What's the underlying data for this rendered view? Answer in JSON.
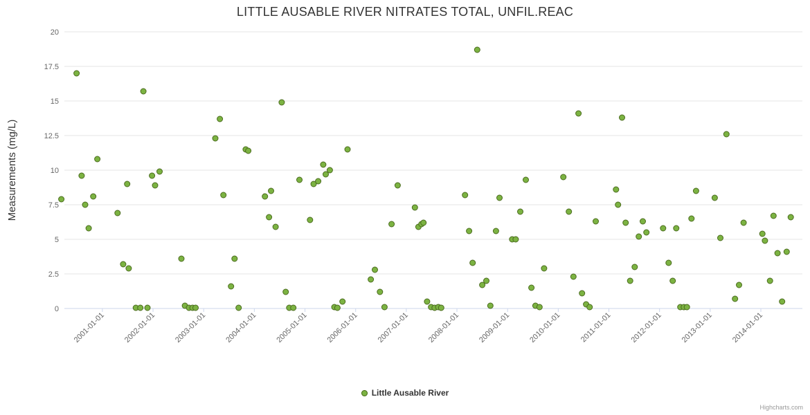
{
  "title": "LITTLE AUSABLE RIVER NITRATES TOTAL, UNFIL.REAC",
  "legend": {
    "label": "Little Ausable River"
  },
  "credits": "Highcharts.com",
  "colors": {
    "point_fill": "#7cb342",
    "point_stroke": "#4b6b1f",
    "grid": "#e6e6e6",
    "axis_line": "#ccd6eb",
    "tick_label": "#666666",
    "axis_title": "#333333"
  },
  "chart_data": {
    "type": "scatter",
    "title": "LITTLE AUSABLE RIVER NITRATES TOTAL, UNFIL.REAC",
    "xlabel": "",
    "ylabel": "Measurements (mg/L)",
    "legend_position": "bottom-center",
    "grid": "horizontal-only",
    "xlim": [
      2000.25,
      2014.82
    ],
    "ylim": [
      0,
      20
    ],
    "ytick_values": [
      0,
      2.5,
      5,
      7.5,
      10,
      12.5,
      15,
      17.5,
      20
    ],
    "ytick_labels": [
      "0",
      "2.5",
      "5",
      "7.5",
      "10",
      "12.5",
      "15",
      "17.5",
      "20"
    ],
    "xtick_values": [
      2001,
      2002,
      2003,
      2004,
      2005,
      2006,
      2007,
      2008,
      2009,
      2010,
      2011,
      2012,
      2013,
      2014
    ],
    "xtick_labels": [
      "2001-01-01",
      "2002-01-01",
      "2003-01-01",
      "2004-01-01",
      "2005-01-01",
      "2006-01-01",
      "2007-01-01",
      "2008-01-01",
      "2009-01-01",
      "2010-01-01",
      "2011-01-01",
      "2012-01-01",
      "2013-01-01",
      "2014-01-01"
    ],
    "series": [
      {
        "name": "Little Ausable River",
        "points": [
          [
            2000.19,
            7.9
          ],
          [
            2000.49,
            17.0
          ],
          [
            2000.59,
            9.6
          ],
          [
            2000.66,
            7.5
          ],
          [
            2000.73,
            5.8
          ],
          [
            2000.82,
            8.1
          ],
          [
            2000.9,
            10.8
          ],
          [
            2001.3,
            6.9
          ],
          [
            2001.41,
            3.2
          ],
          [
            2001.49,
            9.0
          ],
          [
            2001.52,
            2.9
          ],
          [
            2001.66,
            0.05
          ],
          [
            2001.75,
            0.05
          ],
          [
            2001.81,
            15.7
          ],
          [
            2001.89,
            0.05
          ],
          [
            2001.98,
            9.6
          ],
          [
            2002.04,
            8.9
          ],
          [
            2002.13,
            9.9
          ],
          [
            2002.56,
            3.6
          ],
          [
            2002.63,
            0.2
          ],
          [
            2002.71,
            0.05
          ],
          [
            2002.78,
            0.05
          ],
          [
            2002.84,
            0.05
          ],
          [
            2003.23,
            12.3
          ],
          [
            2003.32,
            13.7
          ],
          [
            2003.39,
            8.2
          ],
          [
            2003.54,
            1.6
          ],
          [
            2003.61,
            3.6
          ],
          [
            2003.69,
            0.05
          ],
          [
            2003.83,
            11.5
          ],
          [
            2003.88,
            11.4
          ],
          [
            2004.21,
            8.1
          ],
          [
            2004.29,
            6.6
          ],
          [
            2004.33,
            8.5
          ],
          [
            2004.42,
            5.9
          ],
          [
            2004.54,
            14.9
          ],
          [
            2004.62,
            1.2
          ],
          [
            2004.69,
            0.05
          ],
          [
            2004.77,
            0.05
          ],
          [
            2004.89,
            9.3
          ],
          [
            2005.1,
            6.4
          ],
          [
            2005.17,
            9.0
          ],
          [
            2005.26,
            9.2
          ],
          [
            2005.36,
            10.4
          ],
          [
            2005.41,
            9.7
          ],
          [
            2005.49,
            10.0
          ],
          [
            2005.58,
            0.1
          ],
          [
            2005.64,
            0.05
          ],
          [
            2005.74,
            0.5
          ],
          [
            2005.84,
            11.5
          ],
          [
            2006.3,
            2.1
          ],
          [
            2006.38,
            2.8
          ],
          [
            2006.48,
            1.2
          ],
          [
            2006.57,
            0.1
          ],
          [
            2006.71,
            6.1
          ],
          [
            2006.83,
            8.9
          ],
          [
            2007.17,
            7.3
          ],
          [
            2007.24,
            5.9
          ],
          [
            2007.3,
            6.1
          ],
          [
            2007.34,
            6.2
          ],
          [
            2007.41,
            0.5
          ],
          [
            2007.49,
            0.1
          ],
          [
            2007.56,
            0.05
          ],
          [
            2007.63,
            0.1
          ],
          [
            2007.69,
            0.05
          ],
          [
            2008.16,
            8.2
          ],
          [
            2008.24,
            5.6
          ],
          [
            2008.31,
            3.3
          ],
          [
            2008.4,
            18.7
          ],
          [
            2008.5,
            1.7
          ],
          [
            2008.58,
            2.0
          ],
          [
            2008.66,
            0.2
          ],
          [
            2008.77,
            5.6
          ],
          [
            2008.84,
            8.0
          ],
          [
            2009.09,
            5.0
          ],
          [
            2009.16,
            5.0
          ],
          [
            2009.25,
            7.0
          ],
          [
            2009.36,
            9.3
          ],
          [
            2009.47,
            1.5
          ],
          [
            2009.55,
            0.2
          ],
          [
            2009.63,
            0.1
          ],
          [
            2009.72,
            2.9
          ],
          [
            2010.1,
            9.5
          ],
          [
            2010.21,
            7.0
          ],
          [
            2010.3,
            2.3
          ],
          [
            2010.4,
            14.1
          ],
          [
            2010.47,
            1.1
          ],
          [
            2010.55,
            0.3
          ],
          [
            2010.62,
            0.1
          ],
          [
            2010.74,
            6.3
          ],
          [
            2011.14,
            8.6
          ],
          [
            2011.18,
            7.5
          ],
          [
            2011.26,
            13.8
          ],
          [
            2011.33,
            6.2
          ],
          [
            2011.42,
            2.0
          ],
          [
            2011.51,
            3.0
          ],
          [
            2011.59,
            5.2
          ],
          [
            2011.67,
            6.3
          ],
          [
            2011.74,
            5.5
          ],
          [
            2012.07,
            5.8
          ],
          [
            2012.18,
            3.3
          ],
          [
            2012.26,
            2.0
          ],
          [
            2012.33,
            5.8
          ],
          [
            2012.41,
            0.1
          ],
          [
            2012.48,
            0.1
          ],
          [
            2012.54,
            0.1
          ],
          [
            2012.63,
            6.5
          ],
          [
            2012.72,
            8.5
          ],
          [
            2013.09,
            8.0
          ],
          [
            2013.2,
            5.1
          ],
          [
            2013.32,
            12.6
          ],
          [
            2013.49,
            0.7
          ],
          [
            2013.57,
            1.7
          ],
          [
            2013.66,
            6.2
          ],
          [
            2014.03,
            5.4
          ],
          [
            2014.08,
            4.9
          ],
          [
            2014.18,
            2.0
          ],
          [
            2014.25,
            6.7
          ],
          [
            2014.33,
            4.0
          ],
          [
            2014.42,
            0.5
          ],
          [
            2014.51,
            4.1
          ],
          [
            2014.59,
            6.6
          ]
        ]
      }
    ]
  }
}
